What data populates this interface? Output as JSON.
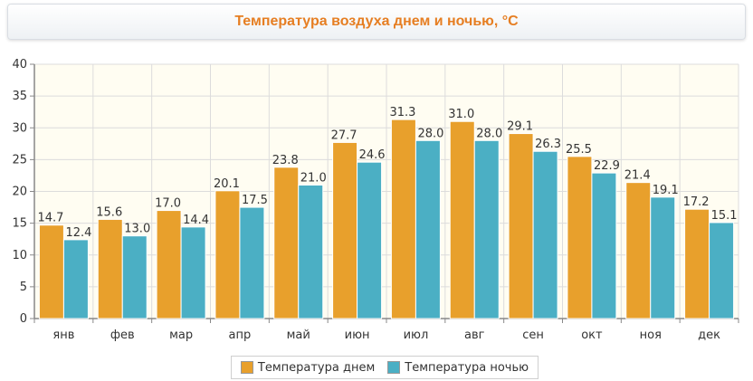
{
  "colors": {
    "day": "#e8a02c",
    "night": "#4bafc4",
    "title": "#e67e22",
    "plot_bg": "#fffdf2"
  },
  "chart_data": {
    "type": "bar",
    "title": "Температура воздуха днем и ночью, °C",
    "xlabel": "",
    "ylabel": "",
    "categories": [
      "янв",
      "фев",
      "мар",
      "апр",
      "май",
      "июн",
      "июл",
      "авг",
      "сен",
      "окт",
      "ноя",
      "дек"
    ],
    "series": [
      {
        "name": "Температура днем",
        "values": [
          14.7,
          15.6,
          17.0,
          20.1,
          23.8,
          27.7,
          31.3,
          31.0,
          29.1,
          25.5,
          21.4,
          17.2
        ]
      },
      {
        "name": "Температура ночью",
        "values": [
          12.4,
          13.0,
          14.4,
          17.5,
          21.0,
          24.6,
          28.0,
          28.0,
          26.3,
          22.9,
          19.1,
          15.1
        ]
      }
    ],
    "ylim": [
      0,
      40
    ],
    "yticks": [
      0,
      5,
      10,
      15,
      20,
      25,
      30,
      35,
      40
    ],
    "grid": true,
    "legend": "bottom"
  }
}
